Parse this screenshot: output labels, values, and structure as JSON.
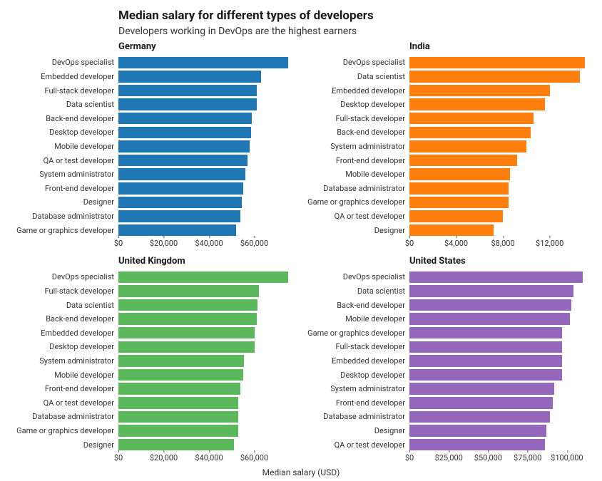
{
  "title": "Median salary for different types of developers",
  "subtitle": "Developers working in DevOps are the highest earners",
  "xaxis_label": "Median salary (USD)",
  "label_fontsize": 12,
  "title_fontsize": 17,
  "subtitle_fontsize": 14,
  "panel_title_fontsize": 13,
  "tick_fontsize": 11,
  "background_color": "#ffffff",
  "text_color": "#1a1a1a",
  "panels": [
    {
      "title": "Germany",
      "color": "#1f77b4",
      "xlim": [
        0,
        80000
      ],
      "ticks": [
        0,
        20000,
        40000,
        60000
      ],
      "tick_labels": [
        "$0",
        "$20,000",
        "$40,000",
        "$60,000"
      ],
      "categories": [
        "DevOps specialist",
        "Embedded developer",
        "Full-stack developer",
        "Data scientist",
        "Back-end developer",
        "Desktop developer",
        "Mobile developer",
        "QA or test developer",
        "System administrator",
        "Front-end developer",
        "Designer",
        "Database administrator",
        "Game or graphics developer"
      ],
      "values": [
        75000,
        63000,
        61000,
        61000,
        59000,
        58500,
        58000,
        57000,
        56000,
        55000,
        54500,
        54000,
        52000
      ]
    },
    {
      "title": "India",
      "color": "#ff7f0e",
      "xlim": [
        0,
        15500
      ],
      "ticks": [
        0,
        4000,
        8000,
        12000
      ],
      "tick_labels": [
        "$0",
        "$4,000",
        "$8,000",
        "$12,000"
      ],
      "categories": [
        "DevOps specialist",
        "Data scientist",
        "Embedded developer",
        "Desktop developer",
        "Full-stack developer",
        "Back-end developer",
        "System administrator",
        "Front-end developer",
        "Mobile developer",
        "Database administrator",
        "Game or graphics developer",
        "QA or test developer",
        "Designer"
      ],
      "values": [
        15000,
        14600,
        12000,
        11600,
        10600,
        10400,
        10000,
        9200,
        8600,
        8500,
        8500,
        8000,
        7200
      ]
    },
    {
      "title": "United Kingdom",
      "color": "#5cb85c",
      "xlim": [
        0,
        80000
      ],
      "ticks": [
        0,
        20000,
        40000,
        60000
      ],
      "tick_labels": [
        "$0",
        "$20,000",
        "$40,000",
        "$60,000"
      ],
      "categories": [
        "DevOps specialist",
        "Full-stack developer",
        "Data scientist",
        "Back-end developer",
        "Embedded developer",
        "Desktop developer",
        "System administrator",
        "Mobile developer",
        "Front-end developer",
        "QA or test developer",
        "Database administrator",
        "Game or graphics developer",
        "Designer"
      ],
      "values": [
        75000,
        62000,
        61500,
        61000,
        60000,
        60000,
        55500,
        55000,
        54000,
        53000,
        53000,
        53000,
        51000
      ]
    },
    {
      "title": "United States",
      "color": "#9467bd",
      "xlim": [
        0,
        115000
      ],
      "ticks": [
        0,
        25000,
        50000,
        75000,
        100000
      ],
      "tick_labels": [
        "$0",
        "$25,000",
        "$50,000",
        "$75,000",
        "$100,000"
      ],
      "categories": [
        "DevOps specialist",
        "Data scientist",
        "Back-end developer",
        "Mobile developer",
        "Game or graphics developer",
        "Full-stack developer",
        "Embedded developer",
        "Desktop developer",
        "System administrator",
        "Front-end developer",
        "Database administrator",
        "Designer",
        "QA or test developer"
      ],
      "values": [
        110000,
        104000,
        103000,
        102000,
        97000,
        97000,
        97000,
        97000,
        92000,
        91000,
        89000,
        87000,
        86000
      ]
    }
  ]
}
